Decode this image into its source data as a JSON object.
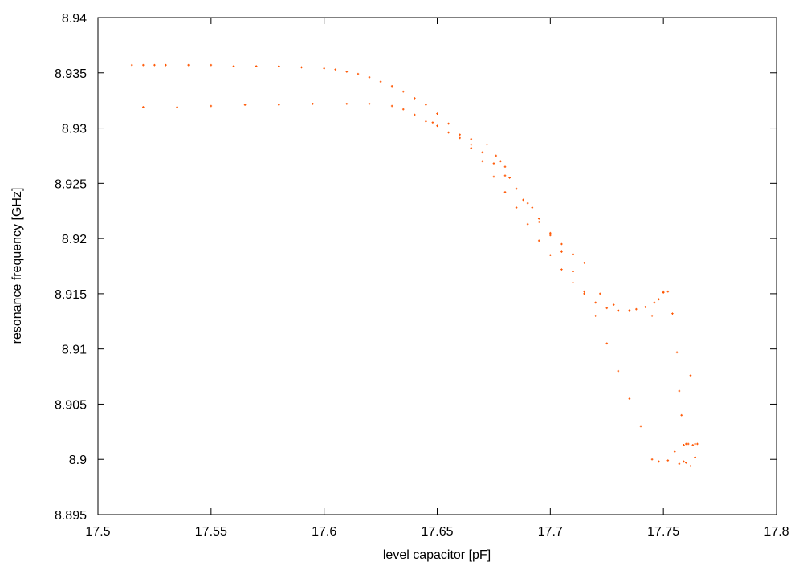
{
  "chart_data": {
    "type": "scatter",
    "xlabel": "level capacitor [pF]",
    "ylabel": "resonance frequency [GHz]",
    "xlim": [
      17.5,
      17.8
    ],
    "ylim": [
      8.895,
      8.94
    ],
    "x_ticks": [
      "17.5",
      "17.55",
      "17.6",
      "17.65",
      "17.7",
      "17.75",
      "17.8"
    ],
    "y_ticks": [
      "8.895",
      "8.9",
      "8.905",
      "8.91",
      "8.915",
      "8.92",
      "8.925",
      "8.93",
      "8.935",
      "8.94"
    ],
    "grid": false,
    "legend": "none",
    "marker_color": "#ff5500",
    "series": [
      {
        "x": [
          17.515,
          17.52,
          17.525,
          17.53,
          17.54,
          17.55,
          17.56,
          17.57,
          17.58,
          17.59,
          17.6,
          17.605,
          17.61,
          17.615,
          17.62,
          17.625,
          17.63,
          17.635,
          17.64,
          17.645,
          17.65,
          17.655,
          17.66,
          17.665,
          17.67,
          17.675,
          17.68,
          17.685,
          17.69,
          17.695,
          17.7,
          17.705,
          17.71,
          17.715,
          17.72,
          17.725,
          17.73,
          17.735,
          17.738,
          17.742,
          17.746,
          17.75
        ],
        "y": [
          8.9357,
          8.9357,
          8.9357,
          8.9357,
          8.9357,
          8.9357,
          8.9356,
          8.9356,
          8.9356,
          8.9355,
          8.9354,
          8.9353,
          8.9351,
          8.9349,
          8.9346,
          8.9342,
          8.9338,
          8.9333,
          8.9327,
          8.9321,
          8.9313,
          8.9304,
          8.9294,
          8.9282,
          8.927,
          8.9256,
          8.9242,
          8.9228,
          8.9213,
          8.9198,
          8.9185,
          8.9172,
          8.916,
          8.915,
          8.9142,
          8.9137,
          8.9135,
          8.9135,
          8.9136,
          8.9138,
          8.9142,
          8.9151
        ]
      },
      {
        "x": [
          17.52,
          17.535,
          17.55,
          17.565,
          17.58,
          17.595,
          17.61,
          17.62,
          17.63,
          17.635,
          17.64,
          17.645,
          17.65,
          17.655,
          17.66,
          17.665,
          17.67,
          17.675,
          17.68,
          17.685,
          17.69,
          17.695,
          17.7,
          17.705,
          17.71,
          17.715,
          17.72,
          17.725,
          17.73,
          17.735,
          17.74,
          17.745,
          17.748,
          17.752,
          17.755,
          17.757,
          17.759,
          17.76,
          17.762,
          17.764
        ],
        "y": [
          8.9319,
          8.9319,
          8.932,
          8.9321,
          8.9321,
          8.9322,
          8.9322,
          8.9322,
          8.932,
          8.9317,
          8.9312,
          8.9306,
          8.9302,
          8.9296,
          8.9291,
          8.9285,
          8.9278,
          8.9268,
          8.9257,
          8.9245,
          8.9232,
          8.9218,
          8.9203,
          8.9188,
          8.917,
          8.9152,
          8.913,
          8.9105,
          8.908,
          8.9055,
          8.903,
          8.9,
          8.8998,
          8.8999,
          8.9007,
          8.8996,
          8.8998,
          8.8997,
          8.8994,
          8.9002
        ]
      },
      {
        "x": [
          17.648,
          17.665,
          17.672,
          17.676,
          17.678,
          17.68,
          17.682,
          17.685,
          17.688,
          17.692,
          17.695,
          17.7,
          17.705,
          17.71,
          17.715,
          17.722,
          17.728,
          17.745,
          17.748,
          17.75,
          17.752,
          17.754,
          17.756,
          17.757,
          17.758,
          17.759,
          17.76,
          17.761,
          17.762,
          17.763,
          17.764,
          17.765
        ],
        "y": [
          8.9305,
          8.929,
          8.9285,
          8.9275,
          8.927,
          8.9265,
          8.9255,
          8.9245,
          8.9235,
          8.9228,
          8.9215,
          8.9205,
          8.9195,
          8.9186,
          8.9178,
          8.915,
          8.914,
          8.913,
          8.9145,
          8.9152,
          8.9152,
          8.9132,
          8.9097,
          8.9062,
          8.904,
          8.9013,
          8.9014,
          8.9014,
          8.9076,
          8.9013,
          8.9014,
          8.9014
        ]
      }
    ]
  }
}
